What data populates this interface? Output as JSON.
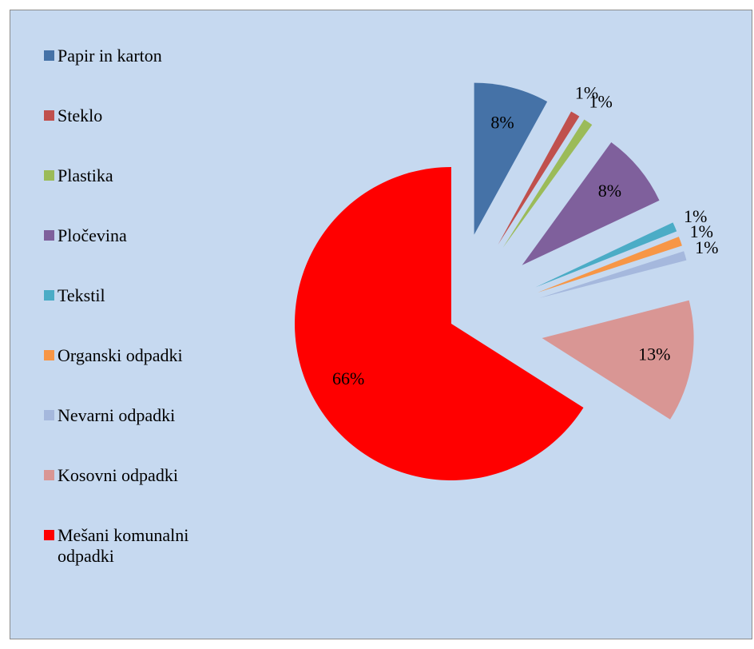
{
  "chart_data": {
    "type": "pie",
    "categories": [
      "Papir in karton",
      "Steklo",
      "Plastika",
      "Pločevina",
      "Tekstil",
      "Organski odpadki",
      "Nevarni odpadki",
      "Kosovni odpadki",
      "Mešani komunalni odpadki"
    ],
    "values": [
      8,
      1,
      1,
      8,
      1,
      1,
      1,
      13,
      66
    ],
    "value_labels": [
      "8%",
      "1%",
      "1%",
      "8%",
      "1%",
      "1%",
      "1%",
      "13%",
      "66%"
    ],
    "colors": [
      "#4572a7",
      "#c0504d",
      "#9bbb59",
      "#7f609c",
      "#4bacc6",
      "#f79646",
      "#a5b8dd",
      "#d99694",
      "#ff0000"
    ],
    "legend": "left"
  }
}
